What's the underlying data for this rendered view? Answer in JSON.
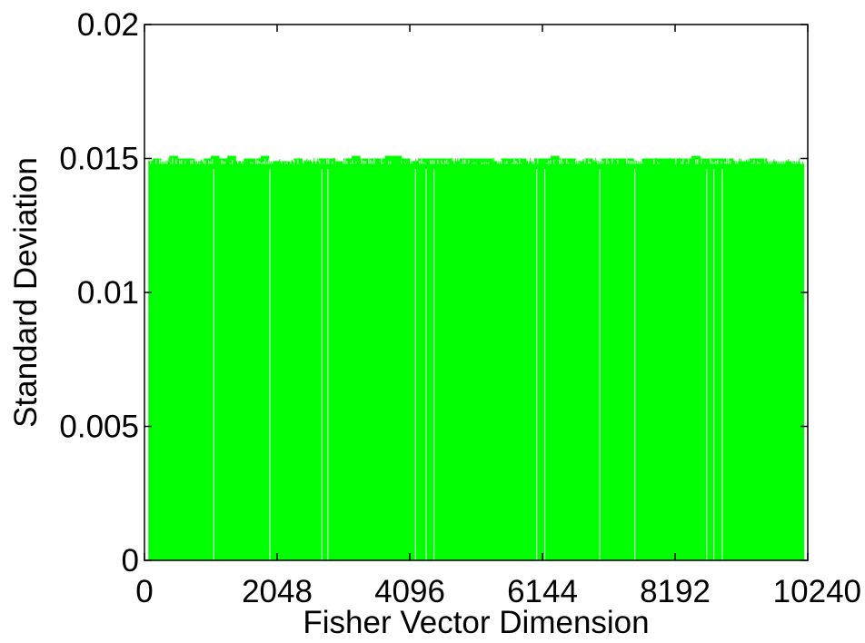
{
  "chart_data": {
    "type": "bar",
    "title": "",
    "xlabel": "Fisher Vector Dimension",
    "ylabel": "Standard Deviation",
    "xlim": [
      0,
      10240
    ],
    "ylim": [
      0,
      0.02
    ],
    "xticks": [
      0,
      2048,
      4096,
      6144,
      8192,
      10240
    ],
    "xtick_labels": [
      "0",
      "2048",
      "4096",
      "6144",
      "8192",
      "10240"
    ],
    "yticks": [
      0,
      0.005,
      0.01,
      0.015,
      0.02
    ],
    "ytick_labels": [
      "0",
      "0.005",
      "0.01",
      "0.015",
      "0.02"
    ],
    "grid": false,
    "bar_color": "#00ff00",
    "series": [
      {
        "bin_width": 128,
        "x": [
          64,
          192,
          320,
          448,
          576,
          704,
          832,
          960,
          1088,
          1216,
          1344,
          1472,
          1600,
          1728,
          1856,
          1984,
          2112,
          2240,
          2368,
          2496,
          2624,
          2752,
          2880,
          3008,
          3136,
          3264,
          3392,
          3520,
          3648,
          3776,
          3904,
          4032,
          4160,
          4288,
          4416,
          4544,
          4672,
          4800,
          4928,
          5056,
          5184,
          5312,
          5440,
          5568,
          5696,
          5824,
          5952,
          6080,
          6208,
          6336,
          6464,
          6592,
          6720,
          6848,
          6976,
          7104,
          7232,
          7360,
          7488,
          7616,
          7744,
          7872,
          8000,
          8128,
          8256,
          8384,
          8512,
          8640,
          8768,
          8896,
          9024,
          9152,
          9280,
          9408,
          9536,
          9664,
          9792,
          9920,
          10048,
          10176
        ],
        "values": [
          0.0149,
          0.015,
          0.0149,
          0.0151,
          0.015,
          0.015,
          0.0149,
          0.015,
          0.0151,
          0.015,
          0.0151,
          0.0149,
          0.015,
          0.015,
          0.0151,
          0.0149,
          0.0149,
          0.0149,
          0.015,
          0.0149,
          0.0149,
          0.015,
          0.015,
          0.0149,
          0.015,
          0.0151,
          0.015,
          0.015,
          0.015,
          0.0151,
          0.0151,
          0.015,
          0.0149,
          0.015,
          0.015,
          0.015,
          0.015,
          0.0149,
          0.015,
          0.015,
          0.015,
          0.015,
          0.0149,
          0.015,
          0.015,
          0.015,
          0.0149,
          0.015,
          0.015,
          0.0151,
          0.015,
          0.015,
          0.0149,
          0.015,
          0.0149,
          0.015,
          0.015,
          0.015,
          0.015,
          0.0149,
          0.015,
          0.015,
          0.015,
          0.015,
          0.015,
          0.015,
          0.0151,
          0.015,
          0.015,
          0.015,
          0.015,
          0.0149,
          0.0149,
          0.015,
          0.015,
          0.0149,
          0.0149,
          0.0149,
          0.0149,
          0.0148
        ]
      }
    ]
  }
}
